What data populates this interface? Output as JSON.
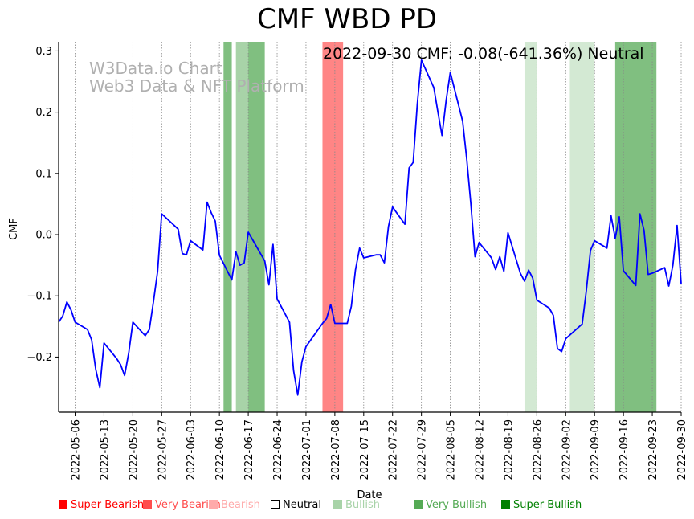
{
  "chart_data": {
    "type": "line",
    "title": "CMF WBD PD",
    "xlabel": "Date",
    "ylabel": "CMF",
    "annotation": "2022-09-30 CMF: -0.08(-641.36%) Neutral",
    "watermark": [
      "W3Data.io Chart",
      "Web3 Data & NFT Platform"
    ],
    "xlim": [
      "2022-05-02",
      "2022-09-30"
    ],
    "ylim": [
      -0.29,
      0.315
    ],
    "grid": "vertical-dotted",
    "x_ticks": [
      "2022-05-06",
      "2022-05-13",
      "2022-05-20",
      "2022-05-27",
      "2022-06-03",
      "2022-06-10",
      "2022-06-17",
      "2022-06-24",
      "2022-07-01",
      "2022-07-08",
      "2022-07-15",
      "2022-07-22",
      "2022-07-29",
      "2022-08-05",
      "2022-08-12",
      "2022-08-19",
      "2022-08-26",
      "2022-09-02",
      "2022-09-09",
      "2022-09-16",
      "2022-09-23",
      "2022-09-30"
    ],
    "y_ticks": [
      -0.2,
      -0.1,
      0.0,
      0.1,
      0.2,
      0.3
    ],
    "y_tick_labels": [
      "−0.2",
      "−0.1",
      "0.0",
      "0.1",
      "0.2",
      "0.3"
    ],
    "series": [
      {
        "name": "CMF",
        "color": "#0000ff",
        "points": [
          [
            "2022-05-02",
            -0.143
          ],
          [
            "2022-05-03",
            -0.133
          ],
          [
            "2022-05-04",
            -0.11
          ],
          [
            "2022-05-05",
            -0.123
          ],
          [
            "2022-05-06",
            -0.143
          ],
          [
            "2022-05-09",
            -0.155
          ],
          [
            "2022-05-10",
            -0.172
          ],
          [
            "2022-05-11",
            -0.22
          ],
          [
            "2022-05-12",
            -0.25
          ],
          [
            "2022-05-13",
            -0.177
          ],
          [
            "2022-05-16",
            -0.202
          ],
          [
            "2022-05-17",
            -0.212
          ],
          [
            "2022-05-18",
            -0.23
          ],
          [
            "2022-05-19",
            -0.193
          ],
          [
            "2022-05-20",
            -0.143
          ],
          [
            "2022-05-23",
            -0.165
          ],
          [
            "2022-05-24",
            -0.155
          ],
          [
            "2022-05-25",
            -0.11
          ],
          [
            "2022-05-26",
            -0.06
          ],
          [
            "2022-05-27",
            0.034
          ],
          [
            "2022-05-31",
            0.009
          ],
          [
            "2022-06-01",
            -0.031
          ],
          [
            "2022-06-02",
            -0.033
          ],
          [
            "2022-06-03",
            -0.01
          ],
          [
            "2022-06-06",
            -0.025
          ],
          [
            "2022-06-07",
            0.053
          ],
          [
            "2022-06-08",
            0.036
          ],
          [
            "2022-06-09",
            0.022
          ],
          [
            "2022-06-10",
            -0.034
          ],
          [
            "2022-06-13",
            -0.074
          ],
          [
            "2022-06-14",
            -0.028
          ],
          [
            "2022-06-15",
            -0.05
          ],
          [
            "2022-06-16",
            -0.046
          ],
          [
            "2022-06-17",
            0.004
          ],
          [
            "2022-06-21",
            -0.043
          ],
          [
            "2022-06-22",
            -0.082
          ],
          [
            "2022-06-23",
            -0.016
          ],
          [
            "2022-06-24",
            -0.105
          ],
          [
            "2022-06-27",
            -0.143
          ],
          [
            "2022-06-28",
            -0.222
          ],
          [
            "2022-06-29",
            -0.262
          ],
          [
            "2022-06-30",
            -0.208
          ],
          [
            "2022-07-01",
            -0.183
          ],
          [
            "2022-07-05",
            -0.145
          ],
          [
            "2022-07-06",
            -0.137
          ],
          [
            "2022-07-07",
            -0.114
          ],
          [
            "2022-07-08",
            -0.145
          ],
          [
            "2022-07-11",
            -0.145
          ],
          [
            "2022-07-12",
            -0.117
          ],
          [
            "2022-07-13",
            -0.058
          ],
          [
            "2022-07-14",
            -0.022
          ],
          [
            "2022-07-15",
            -0.038
          ],
          [
            "2022-07-18",
            -0.033
          ],
          [
            "2022-07-19",
            -0.033
          ],
          [
            "2022-07-20",
            -0.046
          ],
          [
            "2022-07-21",
            0.013
          ],
          [
            "2022-07-22",
            0.045
          ],
          [
            "2022-07-25",
            0.017
          ],
          [
            "2022-07-26",
            0.109
          ],
          [
            "2022-07-27",
            0.118
          ],
          [
            "2022-07-28",
            0.213
          ],
          [
            "2022-07-29",
            0.285
          ],
          [
            "2022-08-01",
            0.24
          ],
          [
            "2022-08-02",
            0.2
          ],
          [
            "2022-08-03",
            0.162
          ],
          [
            "2022-08-04",
            0.22
          ],
          [
            "2022-08-05",
            0.265
          ],
          [
            "2022-08-08",
            0.185
          ],
          [
            "2022-08-09",
            0.123
          ],
          [
            "2022-08-10",
            0.05
          ],
          [
            "2022-08-11",
            -0.036
          ],
          [
            "2022-08-12",
            -0.013
          ],
          [
            "2022-08-15",
            -0.038
          ],
          [
            "2022-08-16",
            -0.057
          ],
          [
            "2022-08-17",
            -0.036
          ],
          [
            "2022-08-18",
            -0.06
          ],
          [
            "2022-08-19",
            0.003
          ],
          [
            "2022-08-22",
            -0.063
          ],
          [
            "2022-08-23",
            -0.076
          ],
          [
            "2022-08-24",
            -0.058
          ],
          [
            "2022-08-25",
            -0.071
          ],
          [
            "2022-08-26",
            -0.107
          ],
          [
            "2022-08-29",
            -0.12
          ],
          [
            "2022-08-30",
            -0.132
          ],
          [
            "2022-08-31",
            -0.186
          ],
          [
            "2022-09-01",
            -0.191
          ],
          [
            "2022-09-02",
            -0.17
          ],
          [
            "2022-09-06",
            -0.146
          ],
          [
            "2022-09-07",
            -0.091
          ],
          [
            "2022-09-08",
            -0.026
          ],
          [
            "2022-09-09",
            -0.01
          ],
          [
            "2022-09-12",
            -0.022
          ],
          [
            "2022-09-13",
            0.031
          ],
          [
            "2022-09-14",
            -0.006
          ],
          [
            "2022-09-15",
            0.029
          ],
          [
            "2022-09-16",
            -0.059
          ],
          [
            "2022-09-19",
            -0.083
          ],
          [
            "2022-09-20",
            0.034
          ],
          [
            "2022-09-21",
            0.007
          ],
          [
            "2022-09-22",
            -0.065
          ],
          [
            "2022-09-23",
            -0.063
          ],
          [
            "2022-09-26",
            -0.054
          ],
          [
            "2022-09-27",
            -0.084
          ],
          [
            "2022-09-28",
            -0.05
          ],
          [
            "2022-09-29",
            0.015
          ],
          [
            "2022-09-30",
            -0.08
          ]
        ]
      }
    ],
    "bands": [
      {
        "start": "2022-06-11",
        "end": "2022-06-13",
        "sentiment": "Very Bullish",
        "color": "#55aa55",
        "opacity": 0.75
      },
      {
        "start": "2022-06-14",
        "end": "2022-06-17",
        "sentiment": "Bullish",
        "color": "#a8d3a8",
        "opacity": 1.0
      },
      {
        "start": "2022-06-17",
        "end": "2022-06-21",
        "sentiment": "Very Bullish",
        "color": "#55aa55",
        "opacity": 0.75
      },
      {
        "start": "2022-07-05",
        "end": "2022-07-10",
        "sentiment": "Very Bearish",
        "color": "#ff4444",
        "opacity": 0.65
      },
      {
        "start": "2022-08-23",
        "end": "2022-08-26",
        "sentiment": "Bullish",
        "color": "#d3e9d3",
        "opacity": 1.0
      },
      {
        "start": "2022-09-03",
        "end": "2022-09-09",
        "sentiment": "Bullish",
        "color": "#d3e9d3",
        "opacity": 1.0
      },
      {
        "start": "2022-09-14",
        "end": "2022-09-24",
        "sentiment": "Very Bullish",
        "color": "#55aa55",
        "opacity": 0.75
      }
    ],
    "legend": {
      "placement": "bottom",
      "entries": [
        {
          "label": "Super Bearish",
          "color": "#ff0000",
          "text_color": "#ff0000"
        },
        {
          "label": "Very Bearish",
          "color": "#ff4d4d",
          "text_color": "#ff4d4d"
        },
        {
          "label": "Bearish",
          "color": "#ffaaaa",
          "text_color": "#ffaaaa"
        },
        {
          "label": "Neutral",
          "color": "#ffffff",
          "text_color": "#000000"
        },
        {
          "label": "Bullish",
          "color": "#a8d3a8",
          "text_color": "#a8d3a8"
        },
        {
          "label": "Very Bullish",
          "color": "#55aa55",
          "text_color": "#55aa55"
        },
        {
          "label": "Super Bullish",
          "color": "#008000",
          "text_color": "#008000"
        }
      ]
    }
  }
}
